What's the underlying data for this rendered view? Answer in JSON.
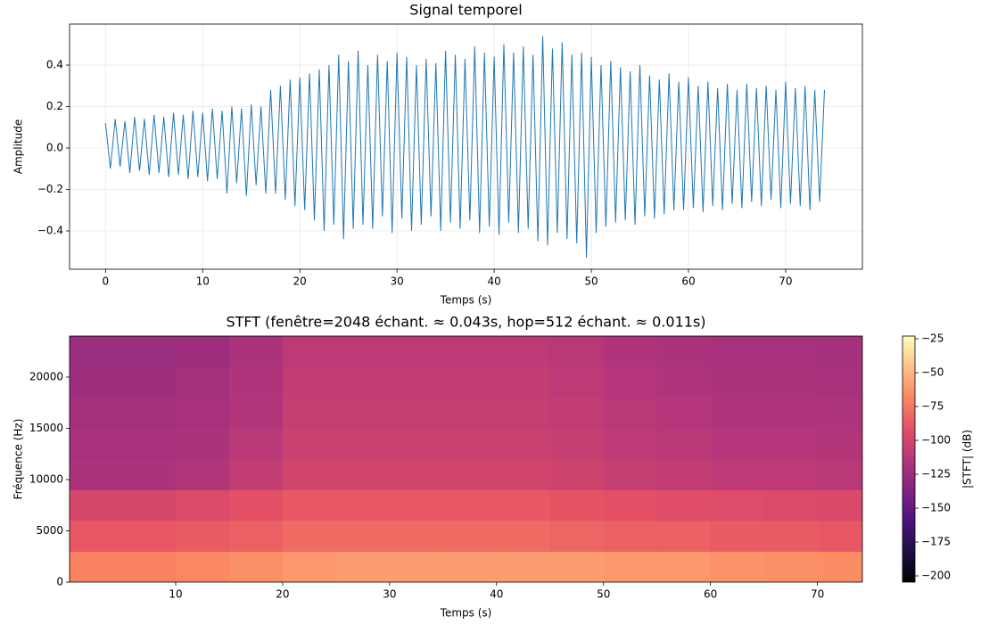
{
  "chart_data": [
    {
      "type": "line",
      "title": "Signal temporel",
      "xlabel": "Temps (s)",
      "ylabel": "Amplitude",
      "color": "#1f77b4",
      "grid": true,
      "xlim": [
        -3.7,
        77.9
      ],
      "ylim": [
        -0.585,
        0.598
      ],
      "xticks": [
        0,
        10,
        20,
        30,
        40,
        50,
        60,
        70
      ],
      "yticks": [
        {
          "value": -0.4,
          "label": "−0.4"
        },
        {
          "value": -0.2,
          "label": "−0.2"
        },
        {
          "value": 0,
          "label": "0.0"
        },
        0.2,
        0.4
      ],
      "x": [
        0,
        0.5,
        1,
        1.5,
        2,
        2.5,
        3,
        3.5,
        4,
        4.5,
        5,
        5.5,
        6,
        6.5,
        7,
        7.5,
        8,
        8.5,
        9,
        9.5,
        10,
        10.5,
        11,
        11.5,
        12,
        12.5,
        13,
        13.5,
        14,
        14.5,
        15,
        15.5,
        16,
        16.5,
        17,
        17.5,
        18,
        18.5,
        19,
        19.5,
        20,
        20.5,
        21,
        21.5,
        22,
        22.5,
        23,
        23.5,
        24,
        24.5,
        25,
        25.5,
        26,
        26.5,
        27,
        27.5,
        28,
        28.5,
        29,
        29.5,
        30,
        30.5,
        31,
        31.5,
        32,
        32.5,
        33,
        33.5,
        34,
        34.5,
        35,
        35.5,
        36,
        36.5,
        37,
        37.5,
        38,
        38.5,
        39,
        39.5,
        40,
        40.5,
        41,
        41.5,
        42,
        42.5,
        43,
        43.5,
        44,
        44.5,
        45,
        45.5,
        46,
        46.5,
        47,
        47.5,
        48,
        48.5,
        49,
        49.5,
        50,
        50.5,
        51,
        51.5,
        52,
        52.5,
        53,
        53.5,
        54,
        54.5,
        55,
        55.5,
        56,
        56.5,
        57,
        57.5,
        58,
        58.5,
        59,
        59.5,
        60,
        60.5,
        61,
        61.5,
        62,
        62.5,
        63,
        63.5,
        64,
        64.5,
        65,
        65.5,
        66,
        66.5,
        67,
        67.5,
        68,
        68.5,
        69,
        69.5,
        70,
        70.5,
        71,
        71.5,
        72,
        72.5,
        73,
        73.5,
        74
      ],
      "values": [
        0.12,
        -0.1,
        0.14,
        -0.09,
        0.13,
        -0.12,
        0.15,
        -0.11,
        0.14,
        -0.13,
        0.16,
        -0.12,
        0.15,
        -0.14,
        0.17,
        -0.13,
        0.16,
        -0.15,
        0.18,
        -0.14,
        0.17,
        -0.16,
        0.19,
        -0.15,
        0.18,
        -0.22,
        0.2,
        -0.17,
        0.19,
        -0.23,
        0.21,
        -0.18,
        0.2,
        -0.22,
        0.28,
        -0.22,
        0.3,
        -0.25,
        0.33,
        -0.28,
        0.34,
        -0.3,
        0.36,
        -0.35,
        0.38,
        -0.4,
        0.4,
        -0.37,
        0.45,
        -0.44,
        0.42,
        -0.39,
        0.47,
        -0.37,
        0.4,
        -0.39,
        0.45,
        -0.33,
        0.42,
        -0.41,
        0.46,
        -0.34,
        0.44,
        -0.4,
        0.4,
        -0.37,
        0.43,
        -0.33,
        0.41,
        -0.4,
        0.47,
        -0.36,
        0.45,
        -0.39,
        0.43,
        -0.35,
        0.49,
        -0.41,
        0.46,
        -0.38,
        0.44,
        -0.42,
        0.5,
        -0.36,
        0.46,
        -0.41,
        0.49,
        -0.39,
        0.45,
        -0.45,
        0.54,
        -0.47,
        0.48,
        -0.41,
        0.51,
        -0.44,
        0.45,
        -0.46,
        0.46,
        -0.53,
        0.44,
        -0.41,
        0.4,
        -0.38,
        0.42,
        -0.36,
        0.39,
        -0.35,
        0.37,
        -0.37,
        0.4,
        -0.33,
        0.35,
        -0.34,
        0.33,
        -0.32,
        0.36,
        -0.3,
        0.32,
        -0.3,
        0.34,
        -0.29,
        0.3,
        -0.31,
        0.32,
        -0.28,
        0.29,
        -0.3,
        0.31,
        -0.27,
        0.28,
        -0.29,
        0.31,
        -0.26,
        0.29,
        -0.28,
        0.3,
        -0.25,
        0.28,
        -0.29,
        0.32,
        -0.27,
        0.29,
        -0.28,
        0.3,
        -0.3,
        0.28,
        -0.26,
        0.28
      ]
    },
    {
      "type": "heatmap",
      "title": "STFT (fenêtre=2048 échant. ≈ 0.043s, hop=512 échant. ≈ 0.011s)",
      "xlabel": "Temps (s)",
      "ylabel": "Fréquence (Hz)",
      "colormap": "magma",
      "xlim": [
        0.08,
        74.2
      ],
      "ylim": [
        0,
        24000
      ],
      "xticks": [
        10,
        20,
        30,
        40,
        50,
        60,
        70
      ],
      "yticks": [
        0,
        5000,
        10000,
        15000,
        20000
      ],
      "xbins": [
        0,
        5,
        10,
        15,
        20,
        25,
        30,
        35,
        40,
        45,
        50,
        55,
        60,
        65,
        70,
        75
      ],
      "ybins": [
        0,
        3000,
        6000,
        9000,
        12000,
        15000,
        18000,
        21000,
        24000
      ],
      "z": [
        [
          -70,
          -70,
          -68,
          -65,
          -62,
          -60,
          -60,
          -60,
          -60,
          -60,
          -62,
          -62,
          -64,
          -65,
          -66
        ],
        [
          -88,
          -88,
          -86,
          -84,
          -80,
          -80,
          -80,
          -80,
          -80,
          -82,
          -84,
          -84,
          -86,
          -86,
          -88
        ],
        [
          -98,
          -98,
          -96,
          -92,
          -88,
          -88,
          -88,
          -88,
          -88,
          -90,
          -92,
          -94,
          -95,
          -96,
          -97
        ],
        [
          -118,
          -118,
          -115,
          -108,
          -100,
          -100,
          -100,
          -100,
          -100,
          -102,
          -106,
          -108,
          -110,
          -110,
          -112
        ],
        [
          -120,
          -120,
          -118,
          -112,
          -104,
          -104,
          -104,
          -104,
          -104,
          -106,
          -110,
          -112,
          -114,
          -114,
          -115
        ],
        [
          -122,
          -122,
          -120,
          -115,
          -106,
          -106,
          -106,
          -106,
          -106,
          -108,
          -112,
          -114,
          -116,
          -116,
          -117
        ],
        [
          -124,
          -124,
          -122,
          -116,
          -108,
          -108,
          -108,
          -108,
          -108,
          -110,
          -114,
          -116,
          -118,
          -118,
          -119
        ],
        [
          -126,
          -126,
          -124,
          -118,
          -110,
          -110,
          -110,
          -110,
          -110,
          -112,
          -116,
          -118,
          -120,
          -120,
          -121
        ]
      ],
      "colorbar": {
        "label": "|STFT| (dB)",
        "zlim": [
          -204.6,
          -23
        ],
        "ticks": [
          {
            "value": -200,
            "label": "−200"
          },
          {
            "value": -175,
            "label": "−175"
          },
          {
            "value": -150,
            "label": "−150"
          },
          {
            "value": -125,
            "label": "−125"
          },
          {
            "value": -100,
            "label": "−100"
          },
          {
            "value": -75,
            "label": "−75"
          },
          {
            "value": -50,
            "label": "−50"
          },
          {
            "value": -25,
            "label": "−25"
          }
        ]
      }
    }
  ]
}
